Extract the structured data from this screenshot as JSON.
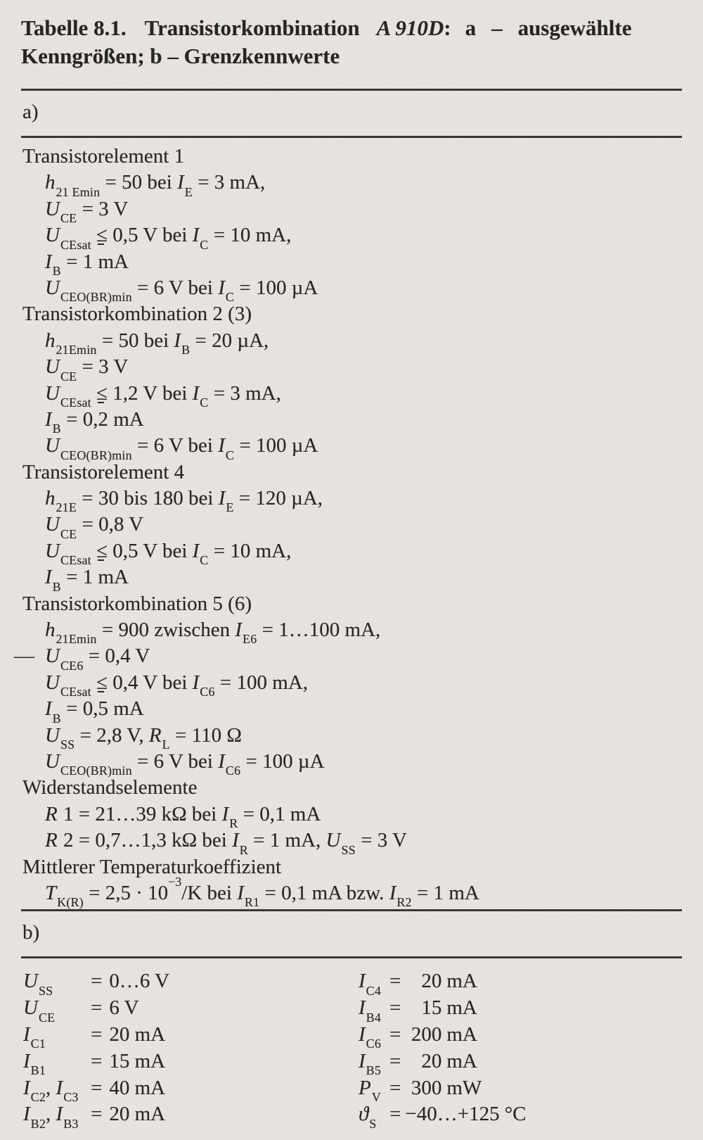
{
  "title": {
    "part1": "Tabelle 8.1.",
    "part2": "Transistorkombination",
    "part3": "A 910D",
    "part4": ":",
    "part5": "a",
    "part6": "–",
    "part7": "ausgewählte",
    "line2": "Kenngrößen; b – Grenzkennwerte"
  },
  "section_a": {
    "label": "a)",
    "lines": [
      {
        "kind": "heading",
        "text": "Transistorelement 1"
      },
      {
        "kind": "formula",
        "text": "*h*_{21 Emin} = 50 bei *I*_{E} = 3 mA,"
      },
      {
        "kind": "formula",
        "text": "*U*_{CE} = 3 V"
      },
      {
        "kind": "formula",
        "text": "*U*_{CEsat} ≦ 0,5 V bei *I*_{C} = 10 mA,"
      },
      {
        "kind": "formula",
        "text": "*I*_{B} = 1 mA"
      },
      {
        "kind": "formula",
        "text": "*U*_{CEO(BR)min} = 6 V bei *I*_{C} = 100 µA"
      },
      {
        "kind": "heading",
        "text": "Transistorkombination 2 (3)"
      },
      {
        "kind": "formula",
        "text": "*h*_{21Emin} = 50 bei *I*_{B} = 20 µA,"
      },
      {
        "kind": "formula",
        "text": "*U*_{CE} = 3 V"
      },
      {
        "kind": "formula",
        "text": "*U*_{CEsat} ≦ 1,2 V bei *I*_{C} = 3 mA,"
      },
      {
        "kind": "formula",
        "text": "*I*_{B} = 0,2 mA"
      },
      {
        "kind": "formula",
        "text": "*U*_{CEO(BR)min} = 6 V bei *I*_{C} = 100 µA"
      },
      {
        "kind": "heading",
        "text": "Transistorelement 4"
      },
      {
        "kind": "formula",
        "text": "*h*_{21E} = 30 bis 180 bei *I*_{E} = 120 µA,"
      },
      {
        "kind": "formula",
        "text": "*U*_{CE} = 0,8 V"
      },
      {
        "kind": "formula",
        "text": "*U*_{CEsat} ≦ 0,5 V bei *I*_{C} = 10 mA,"
      },
      {
        "kind": "formula",
        "text": "*I*_{B} = 1 mA"
      },
      {
        "kind": "heading",
        "text": "Transistorkombination 5 (6)"
      },
      {
        "kind": "formula",
        "text": "*h*_{21Emin} = 900 zwischen *I*_{E6} = 1…100 mA,"
      },
      {
        "kind": "formula",
        "dash": "—",
        "text": "*U*_{CE6} = 0,4 V"
      },
      {
        "kind": "formula",
        "text": "*U*_{CEsat} ≦ 0,4 V bei *I*_{C6} = 100 mA,"
      },
      {
        "kind": "formula",
        "text": "*I*_{B} = 0,5 mA"
      },
      {
        "kind": "formula",
        "text": "*U*_{SS} = 2,8 V, *R*_{L} = 110 Ω"
      },
      {
        "kind": "formula",
        "text": "*U*_{CEO(BR)min} = 6 V bei *I*_{C6} = 100 µA"
      },
      {
        "kind": "heading",
        "text": "Widerstandselemente"
      },
      {
        "kind": "formula",
        "text": "*R* 1 = 21…39 kΩ bei *I*_{R} = 0,1 mA"
      },
      {
        "kind": "formula",
        "text": "*R* 2 = 0,7…1,3 kΩ bei *I*_{R} = 1 mA, *U*_{SS} = 3 V"
      },
      {
        "kind": "heading",
        "text": "Mittlerer Temperaturkoeffizient"
      },
      {
        "kind": "formula",
        "text": "*T*_{K(R)} = 2,5 · 10^{−3}/K bei *I*_{R1} = 0,1 mA bzw. *I*_{R2} = 1 mA"
      }
    ]
  },
  "section_b": {
    "label": "b)",
    "left": [
      {
        "sym": "*U*_{SS}",
        "eq": "=",
        "val": "0…6 V"
      },
      {
        "sym": "*U*_{CE}",
        "eq": "=",
        "val": "6 V"
      },
      {
        "sym": "*I*_{C1}",
        "eq": "=",
        "val": "20 mA"
      },
      {
        "sym": "*I*_{B1}",
        "eq": "=",
        "val": "15 mA"
      },
      {
        "sym": "*I*_{C2}, *I*_{C3}",
        "eq": "=",
        "val": "40 mA"
      },
      {
        "sym": "*I*_{B2}, *I*_{B3}",
        "eq": "=",
        "val": "20 mA"
      }
    ],
    "right": [
      {
        "sym": "*I*_{C4}",
        "eq": "=",
        "num": "20",
        "unit": "mA"
      },
      {
        "sym": "*I*_{B4}",
        "eq": "=",
        "num": "15",
        "unit": "mA"
      },
      {
        "sym": "*I*_{C6}",
        "eq": "=",
        "num": "200",
        "unit": "mA"
      },
      {
        "sym": "*I*_{B5}",
        "eq": "=",
        "num": "20",
        "unit": "mA"
      },
      {
        "sym": "*P*_{V}",
        "eq": "=",
        "num": "300",
        "unit": "mW"
      },
      {
        "sym": "*ϑ*_{S}",
        "eq": "=",
        "num": "−40…+125",
        "unit": "°C"
      }
    ]
  }
}
